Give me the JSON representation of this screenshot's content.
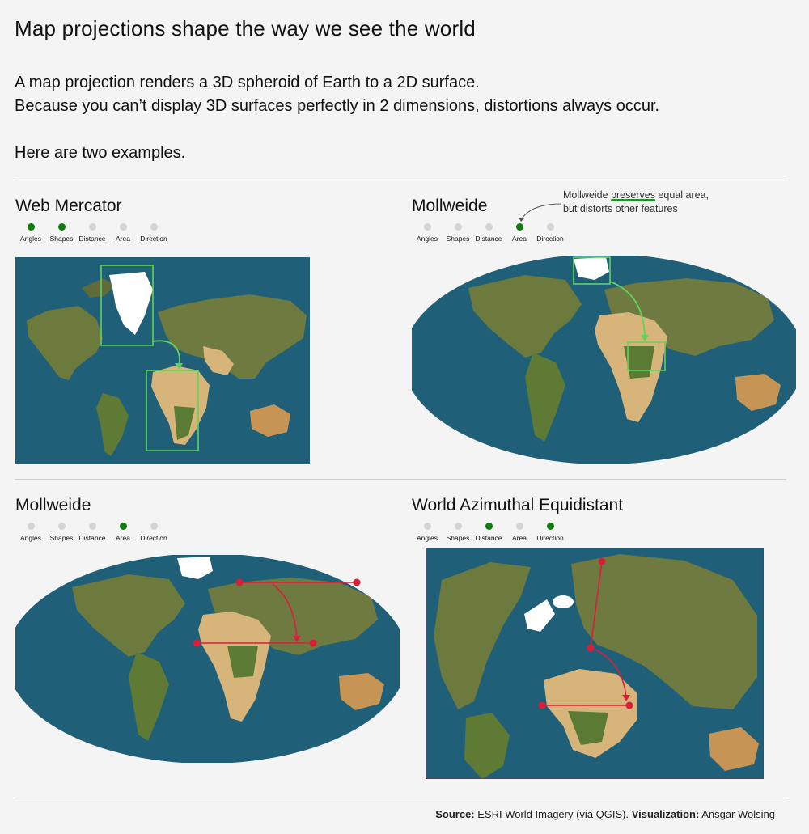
{
  "header": {
    "title": "Map projections shape the way we see the world",
    "intro_line1": "A map projection renders a 3D spheroid of Earth to a 2D surface.",
    "intro_line2": "Because you can’t display 3D surfaces perfectly in 2 dimensions, distortions always occur.",
    "intro_line3": "Here are two examples."
  },
  "property_labels": [
    "Angles",
    "Shapes",
    "Distance",
    "Area",
    "Direction"
  ],
  "panels": [
    {
      "title": "Web Mercator",
      "active": [
        "Angles",
        "Shapes"
      ]
    },
    {
      "title": "Mollweide",
      "active": [
        "Area"
      ]
    },
    {
      "title": "Mollweide",
      "active": [
        "Area"
      ]
    },
    {
      "title": "World Azimuthal Equidistant",
      "active": [
        "Distance",
        "Direction"
      ]
    }
  ],
  "annotation": {
    "prefix": "Mollweide ",
    "highlight": "preserves",
    "suffix": " equal area,",
    "line2": "but distorts other features"
  },
  "footer": {
    "source_label": "Source:",
    "source_text": " ESRI World Imagery (via QGIS). ",
    "viz_label": "Visualization:",
    "viz_text": " Ansgar Wolsing"
  },
  "colors": {
    "active_dot": "#117a11",
    "inactive_dot": "#d4d4d4",
    "highlight_box": "#5fd35a",
    "route": "#d81f3a",
    "ocean": "#1f5f78",
    "land": "#6d7a3e",
    "desert": "#d7b57a",
    "ice": "#ffffff"
  }
}
